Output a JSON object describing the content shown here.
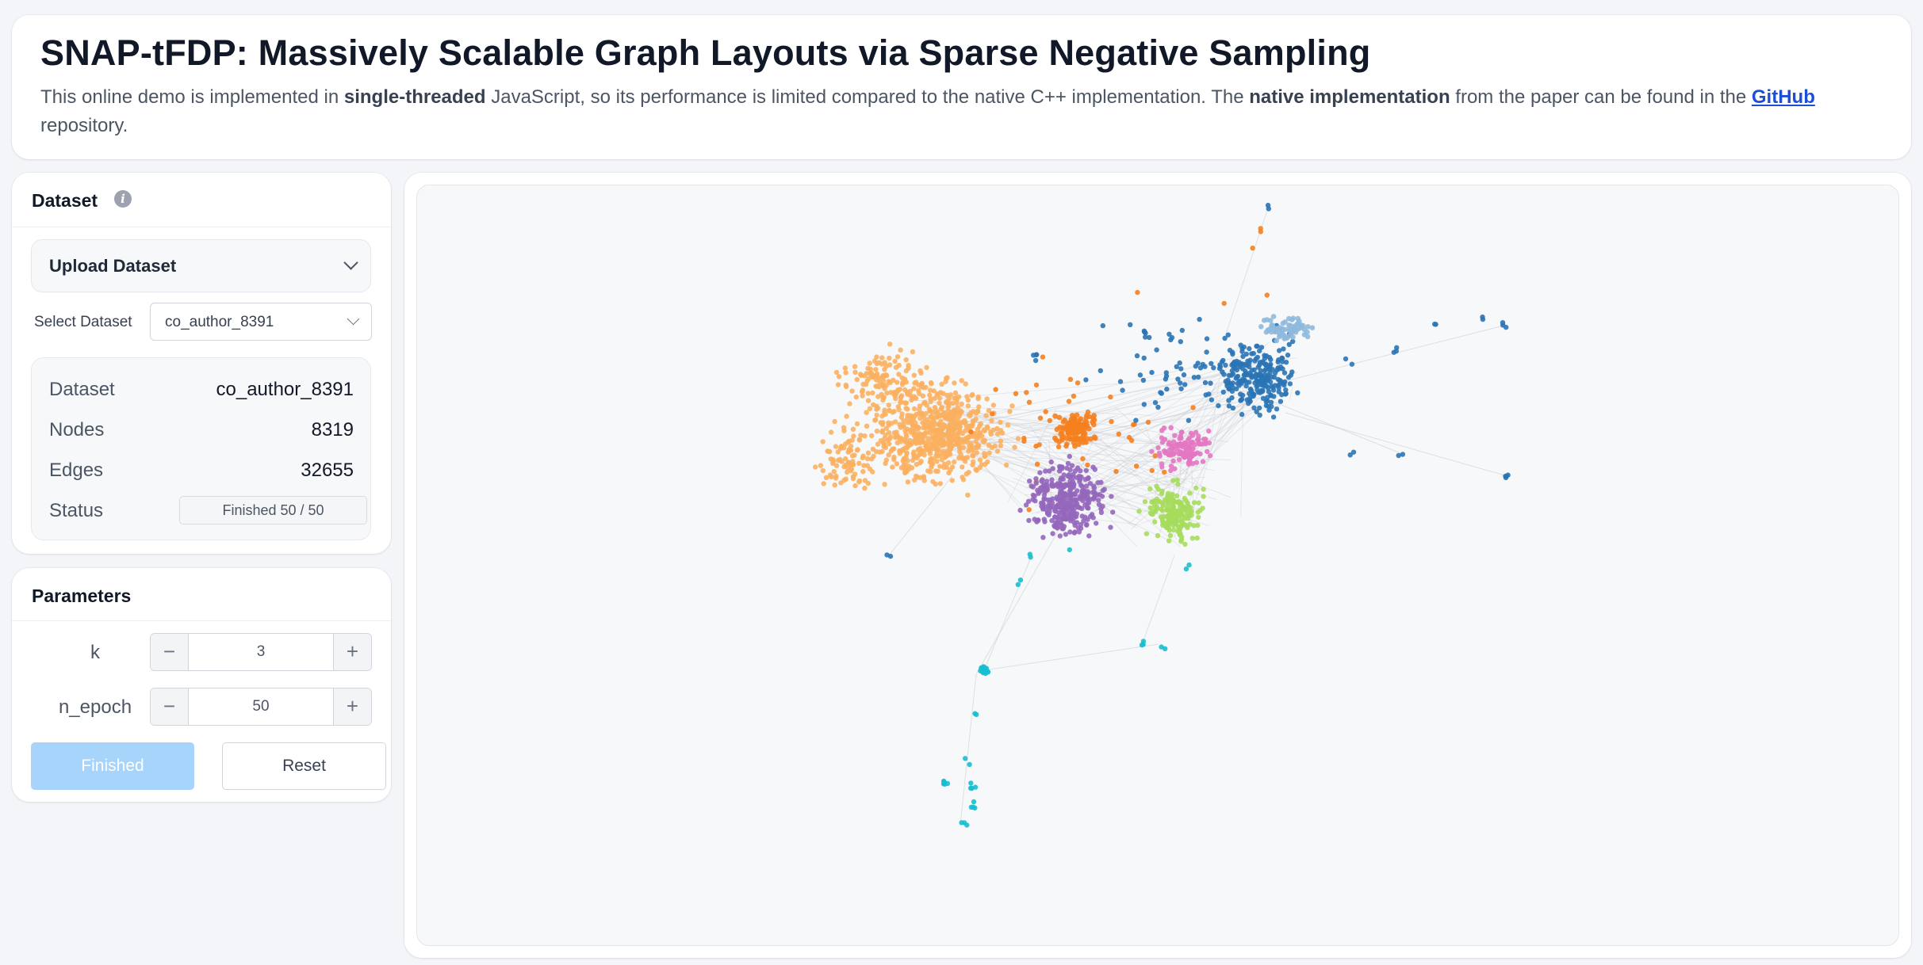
{
  "header": {
    "title": "SNAP-tFDP: Massively Scalable Graph Layouts via Sparse Negative Sampling",
    "desc_part1": "This online demo is implemented in ",
    "desc_bold1": "single-threaded",
    "desc_part2": " JavaScript, so its performance is limited compared to the native C++ implementation. The ",
    "desc_bold2": "native implementation",
    "desc_part3": " from the paper can be found in the ",
    "desc_link": "GitHub",
    "desc_part4": " repository."
  },
  "dataset_card": {
    "title": "Dataset",
    "info_icon": "info-icon",
    "upload_label": "Upload Dataset",
    "select_label": "Select Dataset",
    "selected_value": "co_author_8391",
    "stats": [
      {
        "label": "Dataset",
        "value": "co_author_8391"
      },
      {
        "label": "Nodes",
        "value": "8319"
      },
      {
        "label": "Edges",
        "value": "32655"
      },
      {
        "label": "Status",
        "value": "Finished 50 / 50"
      }
    ]
  },
  "params_card": {
    "title": "Parameters",
    "params": [
      {
        "label": "k",
        "value": "3"
      },
      {
        "label": "n_epoch",
        "value": "50"
      }
    ],
    "finished_label": "Finished",
    "reset_label": "Reset"
  },
  "colors": {
    "light_orange": "#fbb061",
    "orange": "#f5801e",
    "blue": "#2a74b5",
    "light_blue": "#8fb9dc",
    "purple": "#9467bd",
    "pink": "#e377c2",
    "lime": "#a6dc5c",
    "teal": "#17becf",
    "edge": "#c4c7cc"
  }
}
